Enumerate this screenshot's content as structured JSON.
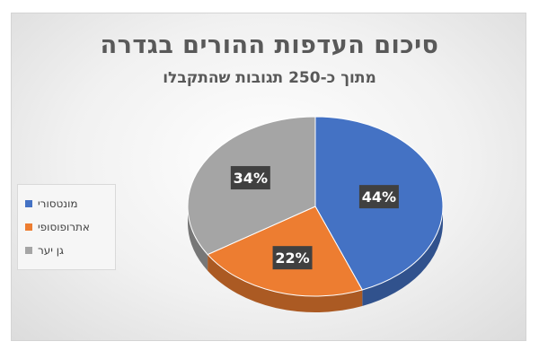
{
  "chart_data": {
    "type": "pie",
    "title": "סיכום העדפות ההורים בגדרה",
    "subtitle": "מתוך כ-250 תגובות שהתקבלו",
    "categories": [
      "מונטסורי",
      "אתרופוסופי",
      "גן יער"
    ],
    "values": [
      44,
      22,
      34
    ],
    "value_labels": [
      "44%",
      "22%",
      "34%"
    ],
    "colors": [
      "#4472C4",
      "#ED7D31",
      "#A5A5A5"
    ],
    "legend_position": "left"
  }
}
